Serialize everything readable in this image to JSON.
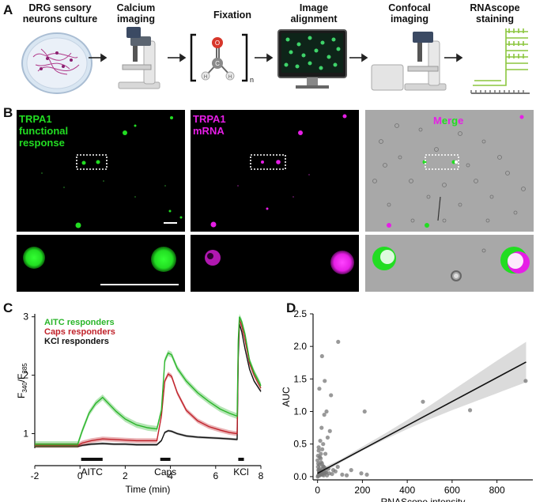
{
  "panel_labels": {
    "a": "A",
    "b": "B",
    "c": "C",
    "d": "D"
  },
  "workflow": {
    "steps": [
      {
        "label": "DRG sensory\nneurons culture",
        "icon": "petri-dish-icon"
      },
      {
        "label": "Calcium\nimaging",
        "icon": "microscope-icon"
      },
      {
        "label": "Fixation",
        "icon": "formaldehyde-icon"
      },
      {
        "label": "Image\nalignment",
        "icon": "monitor-icon"
      },
      {
        "label": "Confocal\nimaging",
        "icon": "confocal-microscope-icon"
      },
      {
        "label": "RNAscope\nstaining",
        "icon": "rnascope-probe-icon"
      }
    ],
    "formaldehyde": {
      "o": "O",
      "c": "C",
      "h1": "H",
      "h2": "H",
      "n": "n"
    }
  },
  "images": {
    "trpa1_response_label": "TRPA1\nfunctional\nresponse",
    "trpa1_mrna_label": "TRPA1\nmRNA",
    "merge_letters": [
      "M",
      "e",
      "r",
      "g",
      "e"
    ],
    "colors": {
      "green": "#22dd22",
      "magenta": "#e61ee6",
      "gray": "#a8a8a8"
    }
  },
  "chart_data": [
    {
      "type": "line",
      "title": "",
      "xlabel": "Time (min)",
      "ylabel_main": "F",
      "ylabel_sub1": "340",
      "ylabel_slash": "/F",
      "ylabel_sub2": "385",
      "xlim": [
        -2,
        8
      ],
      "ylim": [
        0.75,
        3.05
      ],
      "xticks": [
        -2,
        0,
        2,
        4,
        6,
        8
      ],
      "yticks": [
        1,
        2,
        3
      ],
      "legend_position": "top-left",
      "stimuli": [
        {
          "label": "AITC",
          "start": 0.05,
          "end": 1.0
        },
        {
          "label": "Caps",
          "start": 3.55,
          "end": 4.0
        },
        {
          "label": "KCl",
          "start": 7.0,
          "end": 7.25
        }
      ],
      "series": [
        {
          "name": "AITC responders",
          "color": "#2ab52a",
          "x": [
            -2,
            -1,
            -0.1,
            0.1,
            0.4,
            0.7,
            1.0,
            1.3,
            1.6,
            2,
            2.5,
            3,
            3.4,
            3.6,
            3.75,
            3.9,
            4.05,
            4.3,
            4.7,
            5.2,
            5.7,
            6.2,
            6.6,
            6.95,
            7.0,
            7.05,
            7.15,
            7.3,
            7.5,
            7.7,
            7.9,
            8
          ],
          "y": [
            0.82,
            0.82,
            0.82,
            1.05,
            1.35,
            1.52,
            1.62,
            1.5,
            1.38,
            1.25,
            1.15,
            1.1,
            1.08,
            1.4,
            2.25,
            2.38,
            2.35,
            2.12,
            1.9,
            1.7,
            1.55,
            1.42,
            1.35,
            1.3,
            2.6,
            3.0,
            2.92,
            2.7,
            2.25,
            2.05,
            1.9,
            1.82
          ],
          "band": 0.05
        },
        {
          "name": "Caps responders",
          "color": "#c0222a",
          "x": [
            -2,
            -1,
            -0.1,
            0.1,
            0.5,
            1.0,
            1.5,
            2,
            2.5,
            3,
            3.4,
            3.6,
            3.75,
            3.9,
            4.05,
            4.3,
            4.7,
            5.2,
            5.7,
            6.2,
            6.6,
            6.95,
            7.0,
            7.05,
            7.15,
            7.3,
            7.5,
            7.7,
            7.9,
            8
          ],
          "y": [
            0.8,
            0.8,
            0.8,
            0.84,
            0.88,
            0.91,
            0.9,
            0.89,
            0.88,
            0.88,
            0.88,
            1.3,
            1.9,
            2.02,
            1.98,
            1.7,
            1.4,
            1.22,
            1.12,
            1.06,
            1.02,
            1.0,
            2.5,
            2.95,
            2.85,
            2.6,
            2.2,
            2.0,
            1.85,
            1.78
          ],
          "band": 0.04
        },
        {
          "name": "KCl responders",
          "color": "#111111",
          "x": [
            -2,
            -1,
            -0.1,
            0.1,
            0.5,
            1.0,
            1.5,
            2,
            2.5,
            3,
            3.4,
            3.6,
            3.75,
            3.9,
            4.05,
            4.3,
            4.7,
            5.2,
            5.7,
            6.2,
            6.6,
            6.95,
            7.0,
            7.05,
            7.15,
            7.3,
            7.5,
            7.7,
            7.9,
            8
          ],
          "y": [
            0.78,
            0.78,
            0.78,
            0.8,
            0.82,
            0.83,
            0.82,
            0.82,
            0.81,
            0.81,
            0.81,
            0.88,
            1.02,
            1.05,
            1.04,
            1.0,
            0.96,
            0.94,
            0.93,
            0.92,
            0.91,
            0.9,
            2.3,
            2.88,
            2.75,
            2.45,
            2.1,
            1.9,
            1.78,
            1.72
          ],
          "band": 0.02
        }
      ]
    },
    {
      "type": "scatter",
      "title": "",
      "xlabel": "RNAScope intensity",
      "ylabel": "AUC",
      "xlim": [
        -20,
        960
      ],
      "ylim": [
        -0.05,
        2.5
      ],
      "xticks": [
        0,
        200,
        400,
        600,
        800
      ],
      "yticks": [
        0.0,
        0.5,
        1.0,
        1.5,
        2.0,
        2.5
      ],
      "point_color": "#777777",
      "fit_line": {
        "x": [
          0,
          930
        ],
        "y": [
          0.05,
          1.76
        ]
      },
      "confidence_band": {
        "x": [
          0,
          100,
          200,
          300,
          400,
          500,
          600,
          700,
          800,
          930
        ],
        "lower": [
          0.0,
          0.21,
          0.4,
          0.57,
          0.73,
          0.88,
          1.02,
          1.15,
          1.28,
          1.45
        ],
        "upper": [
          0.1,
          0.26,
          0.46,
          0.66,
          0.87,
          1.09,
          1.32,
          1.55,
          1.78,
          2.07
        ]
      },
      "points": {
        "x": [
          92,
          20,
          32,
          8,
          210,
          60,
          470,
          40,
          30,
          18,
          680,
          928,
          45,
          55,
          12,
          25,
          5,
          15,
          35,
          10,
          0,
          3,
          8,
          2,
          20,
          14,
          6,
          28,
          48,
          70,
          90,
          150,
          195,
          220,
          7,
          11,
          4,
          19,
          23,
          1,
          9,
          13,
          17,
          30,
          38,
          42,
          5,
          2,
          16,
          24,
          33,
          26,
          12,
          8,
          3,
          6,
          10,
          14,
          18,
          22,
          27,
          36,
          52,
          65,
          80,
          110,
          130,
          4,
          7,
          9,
          21
        ],
        "y": [
          2.07,
          1.85,
          1.47,
          1.35,
          1.0,
          1.25,
          1.15,
          1.0,
          0.95,
          0.75,
          1.02,
          1.47,
          0.6,
          0.7,
          0.55,
          0.5,
          0.4,
          0.35,
          0.35,
          0.3,
          0.25,
          0.2,
          0.18,
          0.15,
          0.2,
          0.28,
          0.1,
          0.15,
          0.12,
          0.1,
          0.15,
          0.1,
          0.05,
          0.03,
          0.05,
          0.08,
          0.02,
          0.06,
          0.12,
          0.0,
          0.04,
          0.03,
          0.09,
          0.05,
          0.07,
          0.02,
          0.45,
          0.32,
          0.22,
          0.16,
          0.13,
          0.08,
          0.06,
          0.04,
          0.01,
          0.03,
          0.02,
          0.05,
          0.04,
          0.03,
          0.02,
          0.06,
          0.05,
          0.04,
          0.08,
          0.03,
          0.02,
          0.1,
          0.07,
          0.12,
          0.42
        ]
      }
    }
  ]
}
